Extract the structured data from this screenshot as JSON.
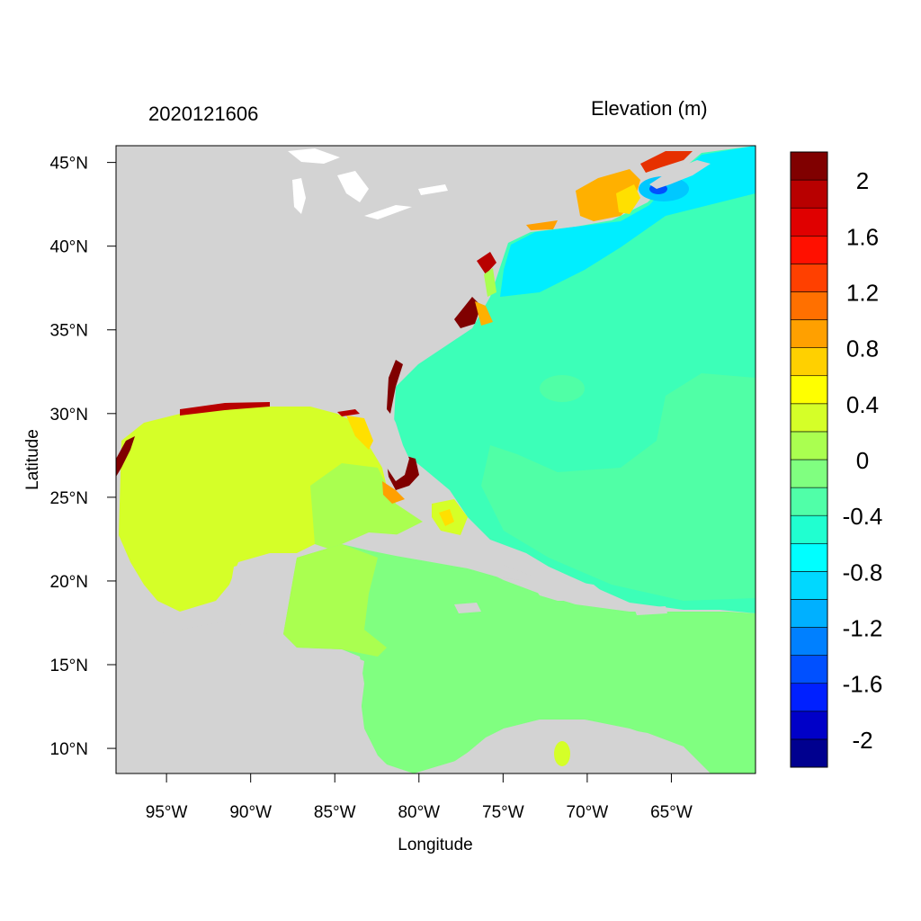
{
  "header": {
    "date": "2020121606",
    "variable": "Elevation (m)"
  },
  "map": {
    "type": "filled-contour-map",
    "lon_range": [
      -98,
      -60
    ],
    "lat_range": [
      8.5,
      46
    ],
    "land_color": "#d3d3d3",
    "x_axis": {
      "title": "Longitude",
      "ticks": [
        {
          "value": -95,
          "label": "95°W"
        },
        {
          "value": -90,
          "label": "90°W"
        },
        {
          "value": -85,
          "label": "85°W"
        },
        {
          "value": -80,
          "label": "80°W"
        },
        {
          "value": -75,
          "label": "75°W"
        },
        {
          "value": -70,
          "label": "70°W"
        },
        {
          "value": -65,
          "label": "65°W"
        }
      ]
    },
    "y_axis": {
      "title": "Latitude",
      "ticks": [
        {
          "value": 45,
          "label": "45°N"
        },
        {
          "value": 40,
          "label": "40°N"
        },
        {
          "value": 35,
          "label": "35°N"
        },
        {
          "value": 30,
          "label": "30°N"
        },
        {
          "value": 25,
          "label": "25°N"
        },
        {
          "value": 20,
          "label": "20°N"
        },
        {
          "value": 15,
          "label": "15°N"
        },
        {
          "value": 10,
          "label": "10°N"
        }
      ]
    }
  },
  "colorbar": {
    "colors": [
      "#00008f",
      "#0000c8",
      "#0020ff",
      "#0050ff",
      "#0080ff",
      "#00b0ff",
      "#00d8ff",
      "#00ffff",
      "#20ffd0",
      "#50ffa8",
      "#80ff80",
      "#aaff50",
      "#d5ff28",
      "#ffff00",
      "#ffd000",
      "#ffa000",
      "#ff7000",
      "#ff4000",
      "#ff1000",
      "#e00000",
      "#b80000",
      "#800000"
    ],
    "labels": [
      "2",
      "1.6",
      "1.2",
      "0.8",
      "0.4",
      "0",
      "-0.4",
      "-0.8",
      "-1.2",
      "-1.6",
      "-2"
    ]
  }
}
